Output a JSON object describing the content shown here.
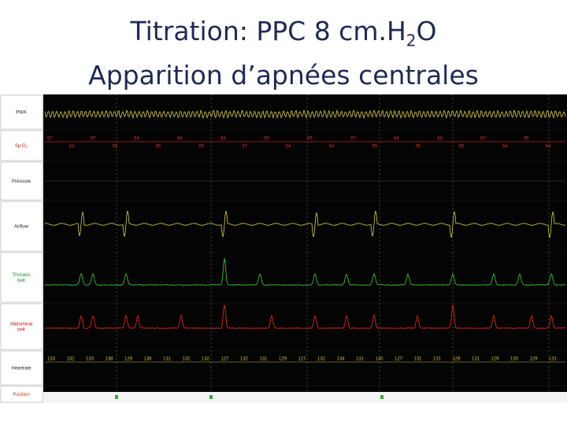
{
  "title": {
    "line1": {
      "text": "Titration: PPC 8 cm.H",
      "subscript": "2",
      "after": "O"
    },
    "line2": "Apparition d’apnées centrales"
  },
  "channels": [
    {
      "lines": [
        "PWA"
      ]
    },
    {
      "lines": [
        "Sp O"
      ],
      "subscript": "2"
    },
    {
      "lines": [
        "Pressure"
      ]
    },
    {
      "lines": [
        "Airflow"
      ]
    },
    {
      "lines": [
        "Thoracic",
        "belt"
      ]
    },
    {
      "lines": [
        "Abdominal",
        "belt"
      ]
    },
    {
      "lines": [
        "Heartrate"
      ]
    },
    {
      "lines": [
        "Position"
      ]
    }
  ],
  "spo2_readings": [
    "97",
    "94",
    "97",
    "95",
    "94",
    "95",
    "94",
    "95",
    "94",
    "97",
    "95",
    "94",
    "95",
    "94",
    "97",
    "95",
    "94",
    "95",
    "94",
    "95",
    "97",
    "94",
    "95",
    "94"
  ],
  "heartrate_readings": [
    "133",
    "132",
    "133",
    "138",
    "129",
    "136",
    "131",
    "132",
    "132",
    "127",
    "132",
    "131",
    "129",
    "127",
    "132",
    "134",
    "131",
    "130",
    "127",
    "131",
    "131",
    "129",
    "131",
    "129",
    "130",
    "129",
    "131"
  ]
}
